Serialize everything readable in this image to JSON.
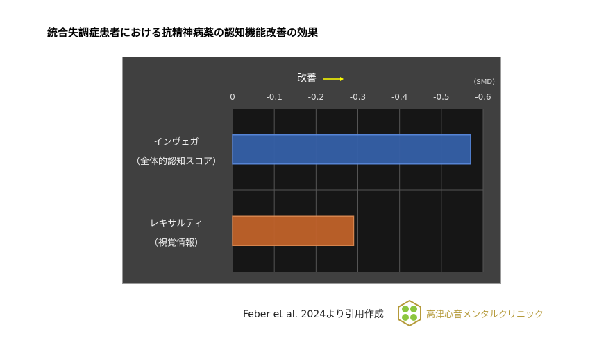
{
  "title": "統合失調症患者における抗精神病薬の認知機能改善の効果",
  "chart_data": {
    "type": "bar",
    "orientation": "horizontal",
    "categories": [
      [
        "インヴェガ",
        "（全体的認知スコア）"
      ],
      [
        "レキサルティ",
        "（視覚情報）"
      ]
    ],
    "values": [
      -0.57,
      -0.29
    ],
    "colors": [
      "#3560a8",
      "#c0622a"
    ],
    "xlim": [
      0,
      -0.6
    ],
    "ticks": [
      "0",
      "-0.1",
      "-0.2",
      "-0.3",
      "-0.4",
      "-0.5",
      "-0.6"
    ],
    "unit": "(SMD)",
    "direction_label": "改善",
    "arrow_color": "#ffff00",
    "grid": true
  },
  "source": "Feber et al. 2024より引用作成",
  "clinic": "高津心音メンタルクリニック"
}
